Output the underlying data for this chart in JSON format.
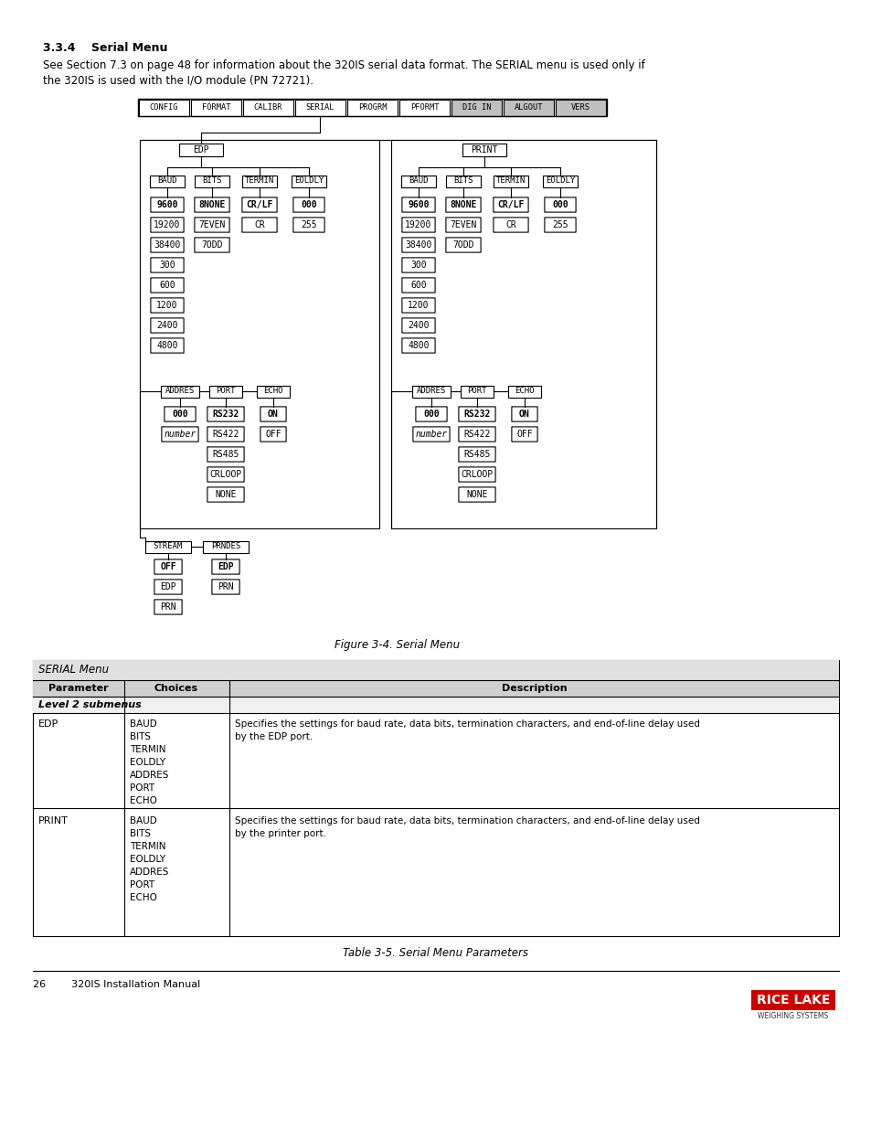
{
  "title_section": "3.3.4    Serial Menu",
  "body_text_1": "See Section 7.3 on page 48 for information about the 320IS serial data format. The SERIAL menu is used only if",
  "body_text_2": "the 320IS is used with the I/O module (PN 72721).",
  "figure_caption": "Figure 3-4. Serial Menu",
  "table_caption": "Table 3-5. Serial Menu Parameters",
  "footer_left": "26        320IS Installation Manual",
  "top_menu": [
    "CONFIG",
    "FORMAT",
    "CALIBR",
    "SERIAL",
    "PROGRM",
    "PFORMT",
    "DIG IN",
    "ALGOUT",
    "VERS"
  ],
  "highlighted_menu": [
    "DIG IN",
    "ALGOUT",
    "VERS"
  ],
  "bg_color": "#ffffff",
  "baud_vals": [
    "9600",
    "19200",
    "38400",
    "300",
    "600",
    "1200",
    "2400",
    "4800"
  ],
  "bits_vals": [
    "8NONE",
    "7EVEN",
    "7ODD"
  ],
  "termin_vals": [
    "CR/LF",
    "CR"
  ],
  "eoldly_vals": [
    "000",
    "255"
  ],
  "port_vals": [
    "RS232",
    "RS422",
    "RS485",
    "CRLOOP",
    "NONE"
  ],
  "echo_vals": [
    "ON",
    "OFF"
  ],
  "stream_vals": [
    "OFF",
    "EDP",
    "PRN"
  ],
  "prndes_vals": [
    "EDP",
    "PRN"
  ],
  "edp_choices": [
    "BAUD",
    "BITS",
    "TERMIN",
    "EOLDLY",
    "ADDRES",
    "PORT",
    "ECHO"
  ],
  "print_choices": [
    "BAUD",
    "BITS",
    "TERMIN",
    "EOLDLY",
    "ADDRES",
    "PORT",
    "ECHO"
  ],
  "sub_labels": [
    "BAUD",
    "BITS",
    "TERMIN",
    "EOLDLY"
  ]
}
